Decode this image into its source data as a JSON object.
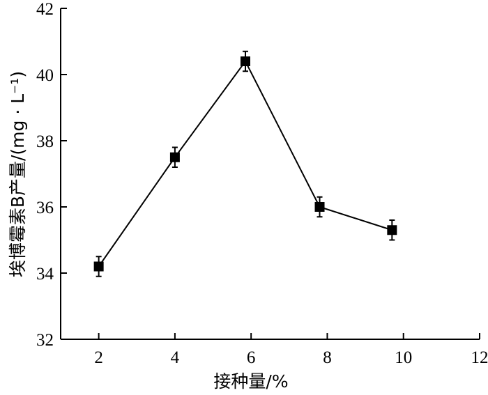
{
  "chart_data": {
    "type": "line",
    "xlabel": "接种量/%",
    "ylabel": "埃博霉素B产量/(mg · L⁻¹)",
    "xlim": [
      1,
      12
    ],
    "ylim": [
      32,
      42
    ],
    "xticks": [
      2,
      4,
      6,
      8,
      10,
      12
    ],
    "yticks": [
      32,
      34,
      36,
      38,
      40,
      42
    ],
    "grid": false,
    "series": [
      {
        "x": [
          2,
          4,
          5.85,
          7.8,
          9.7
        ],
        "y": [
          34.2,
          37.5,
          40.4,
          36.0,
          35.3
        ],
        "error": [
          0.3,
          0.3,
          0.3,
          0.3,
          0.3
        ],
        "marker": "square",
        "color": "#000000"
      }
    ]
  }
}
